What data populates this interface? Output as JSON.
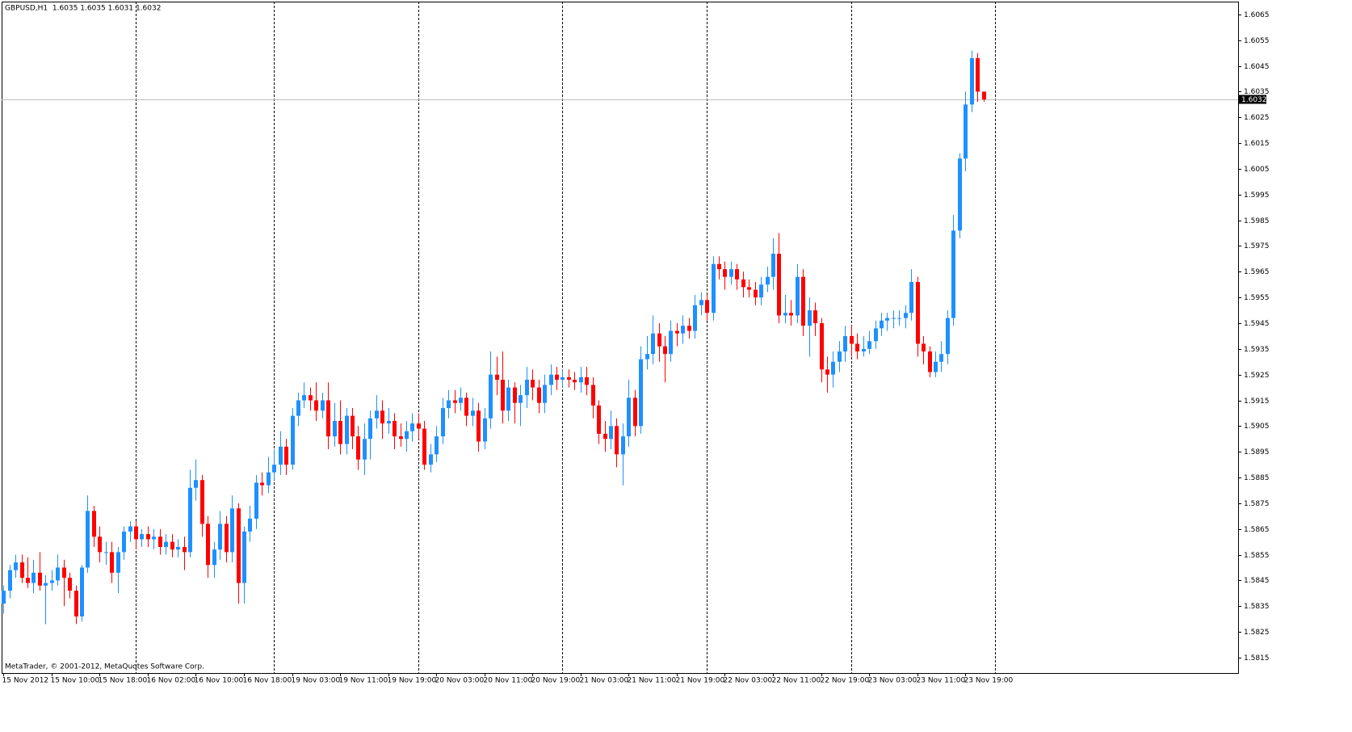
{
  "chart_data": {
    "type": "candlestick",
    "title": "GBPUSD,H1  1.6035 1.6035 1.6031 1.6032",
    "footer": "MetaTrader, © 2001-2012, MetaQuotes Software Corp.",
    "up_color": "#1e90ff",
    "down_color": "#ff0000",
    "last_price": 1.6032,
    "ylim": [
      1.5809,
      1.607
    ],
    "yticks": [
      1.6065,
      1.6055,
      1.6045,
      1.6035,
      1.6025,
      1.6015,
      1.6005,
      1.5995,
      1.5985,
      1.5975,
      1.5965,
      1.5955,
      1.5945,
      1.5935,
      1.5925,
      1.5915,
      1.5905,
      1.5895,
      1.5885,
      1.5875,
      1.5865,
      1.5855,
      1.5845,
      1.5835,
      1.5825,
      1.5815
    ],
    "xticks": [
      "15 Nov 2012",
      "15 Nov 10:00",
      "15 Nov 18:00",
      "16 Nov 02:00",
      "16 Nov 10:00",
      "16 Nov 18:00",
      "19 Nov 03:00",
      "19 Nov 11:00",
      "19 Nov 19:00",
      "20 Nov 03:00",
      "20 Nov 11:00",
      "20 Nov 19:00",
      "21 Nov 03:00",
      "21 Nov 11:00",
      "21 Nov 19:00",
      "22 Nov 03:00",
      "22 Nov 11:00",
      "22 Nov 19:00",
      "23 Nov 03:00",
      "23 Nov 11:00",
      "23 Nov 19:00"
    ],
    "candles": [
      [
        1.5836,
        1.5843,
        1.5832,
        1.5841
      ],
      [
        1.5841,
        1.5851,
        1.5838,
        1.5849
      ],
      [
        1.5849,
        1.5855,
        1.5846,
        1.5852
      ],
      [
        1.5852,
        1.5855,
        1.5844,
        1.5846
      ],
      [
        1.5846,
        1.5854,
        1.5842,
        1.5844
      ],
      [
        1.5844,
        1.5853,
        1.584,
        1.5848
      ],
      [
        1.5848,
        1.5856,
        1.5841,
        1.5843
      ],
      [
        1.5843,
        1.5847,
        1.5828,
        1.5844
      ],
      [
        1.5844,
        1.5849,
        1.5841,
        1.5845
      ],
      [
        1.5845,
        1.5855,
        1.5843,
        1.585
      ],
      [
        1.585,
        1.5853,
        1.5835,
        1.5846
      ],
      [
        1.5846,
        1.5848,
        1.5838,
        1.5841
      ],
      [
        1.5841,
        1.5843,
        1.5828,
        1.5831
      ],
      [
        1.5831,
        1.5851,
        1.5829,
        1.585
      ],
      [
        1.585,
        1.5878,
        1.5848,
        1.5872
      ],
      [
        1.5872,
        1.5874,
        1.5858,
        1.5862
      ],
      [
        1.5862,
        1.5866,
        1.5852,
        1.5856
      ],
      [
        1.5856,
        1.586,
        1.5851,
        1.5856
      ],
      [
        1.5856,
        1.586,
        1.5844,
        1.5848
      ],
      [
        1.5848,
        1.5858,
        1.584,
        1.5856
      ],
      [
        1.5856,
        1.5866,
        1.5853,
        1.5864
      ],
      [
        1.5864,
        1.5868,
        1.586,
        1.5866
      ],
      [
        1.5866,
        1.5868,
        1.5857,
        1.5861
      ],
      [
        1.5861,
        1.5865,
        1.5858,
        1.5863
      ],
      [
        1.5863,
        1.5866,
        1.5858,
        1.5861
      ],
      [
        1.5861,
        1.5865,
        1.5857,
        1.5862
      ],
      [
        1.5862,
        1.5865,
        1.5855,
        1.5858
      ],
      [
        1.5858,
        1.5863,
        1.5855,
        1.586
      ],
      [
        1.586,
        1.5863,
        1.5854,
        1.5857
      ],
      [
        1.5857,
        1.5861,
        1.5854,
        1.5858
      ],
      [
        1.5858,
        1.5862,
        1.5849,
        1.5856
      ],
      [
        1.5856,
        1.5888,
        1.5854,
        1.5881
      ],
      [
        1.5881,
        1.5892,
        1.5876,
        1.5884
      ],
      [
        1.5884,
        1.5886,
        1.5862,
        1.5867
      ],
      [
        1.5867,
        1.587,
        1.5846,
        1.5851
      ],
      [
        1.5851,
        1.586,
        1.5846,
        1.5857
      ],
      [
        1.5857,
        1.5872,
        1.5853,
        1.5867
      ],
      [
        1.5867,
        1.587,
        1.5852,
        1.5856
      ],
      [
        1.5856,
        1.5878,
        1.5852,
        1.5873
      ],
      [
        1.5873,
        1.5875,
        1.5836,
        1.5844
      ],
      [
        1.5844,
        1.5866,
        1.5836,
        1.5864
      ],
      [
        1.5864,
        1.5874,
        1.586,
        1.5869
      ],
      [
        1.5869,
        1.5886,
        1.5865,
        1.5883
      ],
      [
        1.5883,
        1.5887,
        1.5878,
        1.5882
      ],
      [
        1.5882,
        1.5893,
        1.5879,
        1.5887
      ],
      [
        1.5887,
        1.5896,
        1.5884,
        1.589
      ],
      [
        1.589,
        1.5903,
        1.5886,
        1.5897
      ],
      [
        1.5897,
        1.59,
        1.5886,
        1.589
      ],
      [
        1.589,
        1.5912,
        1.5888,
        1.5909
      ],
      [
        1.5909,
        1.5918,
        1.5905,
        1.5915
      ],
      [
        1.5915,
        1.5922,
        1.5912,
        1.5917
      ],
      [
        1.5917,
        1.592,
        1.5911,
        1.5915
      ],
      [
        1.5915,
        1.5922,
        1.5907,
        1.5911
      ],
      [
        1.5911,
        1.5918,
        1.5908,
        1.5915
      ],
      [
        1.5915,
        1.5922,
        1.5896,
        1.5901
      ],
      [
        1.5901,
        1.5914,
        1.5897,
        1.5907
      ],
      [
        1.5907,
        1.5915,
        1.5894,
        1.5898
      ],
      [
        1.5898,
        1.5912,
        1.5894,
        1.5909
      ],
      [
        1.5909,
        1.5912,
        1.5896,
        1.5901
      ],
      [
        1.5901,
        1.5905,
        1.5888,
        1.5892
      ],
      [
        1.5892,
        1.5906,
        1.5886,
        1.59
      ],
      [
        1.59,
        1.5911,
        1.5892,
        1.5908
      ],
      [
        1.5908,
        1.5917,
        1.5904,
        1.5911
      ],
      [
        1.5911,
        1.5915,
        1.59,
        1.5906
      ],
      [
        1.5906,
        1.5912,
        1.5902,
        1.5907
      ],
      [
        1.5907,
        1.591,
        1.5896,
        1.5901
      ],
      [
        1.5901,
        1.5906,
        1.5897,
        1.59
      ],
      [
        1.59,
        1.5907,
        1.5895,
        1.5903
      ],
      [
        1.5903,
        1.591,
        1.5899,
        1.5906
      ],
      [
        1.5906,
        1.591,
        1.59,
        1.5904
      ],
      [
        1.5904,
        1.5907,
        1.5888,
        1.589
      ],
      [
        1.589,
        1.5898,
        1.5887,
        1.5894
      ],
      [
        1.5894,
        1.5905,
        1.5891,
        1.5901
      ],
      [
        1.5901,
        1.5916,
        1.5898,
        1.5912
      ],
      [
        1.5912,
        1.5919,
        1.5908,
        1.5915
      ],
      [
        1.5915,
        1.5919,
        1.591,
        1.5914
      ],
      [
        1.5914,
        1.592,
        1.5911,
        1.5916
      ],
      [
        1.5916,
        1.5918,
        1.5905,
        1.5909
      ],
      [
        1.5909,
        1.5916,
        1.5905,
        1.5911
      ],
      [
        1.5911,
        1.5914,
        1.5895,
        1.5899
      ],
      [
        1.5899,
        1.5912,
        1.5896,
        1.5908
      ],
      [
        1.5908,
        1.5934,
        1.5904,
        1.5925
      ],
      [
        1.5925,
        1.5932,
        1.5917,
        1.5923
      ],
      [
        1.5923,
        1.5934,
        1.5906,
        1.5911
      ],
      [
        1.5911,
        1.5923,
        1.5907,
        1.592
      ],
      [
        1.592,
        1.5922,
        1.5906,
        1.5914
      ],
      [
        1.5914,
        1.5921,
        1.5905,
        1.5917
      ],
      [
        1.5917,
        1.5928,
        1.5912,
        1.5923
      ],
      [
        1.5923,
        1.5927,
        1.5915,
        1.592
      ],
      [
        1.592,
        1.5923,
        1.591,
        1.5914
      ],
      [
        1.5914,
        1.5925,
        1.591,
        1.5921
      ],
      [
        1.5921,
        1.5929,
        1.5917,
        1.5925
      ],
      [
        1.5925,
        1.5928,
        1.5919,
        1.5923
      ],
      [
        1.5923,
        1.5927,
        1.592,
        1.5924
      ],
      [
        1.5924,
        1.5927,
        1.592,
        1.5923
      ],
      [
        1.5923,
        1.5926,
        1.5919,
        1.5922
      ],
      [
        1.5922,
        1.5928,
        1.5918,
        1.5924
      ],
      [
        1.5924,
        1.5928,
        1.5917,
        1.5921
      ],
      [
        1.5921,
        1.5924,
        1.5908,
        1.5913
      ],
      [
        1.5913,
        1.5915,
        1.5898,
        1.5902
      ],
      [
        1.5902,
        1.5907,
        1.5895,
        1.59
      ],
      [
        1.59,
        1.5911,
        1.5896,
        1.5905
      ],
      [
        1.5905,
        1.5908,
        1.5889,
        1.5894
      ],
      [
        1.5894,
        1.5906,
        1.5882,
        1.5901
      ],
      [
        1.5901,
        1.5923,
        1.5897,
        1.5916
      ],
      [
        1.5916,
        1.5919,
        1.5901,
        1.5905
      ],
      [
        1.5905,
        1.5936,
        1.5902,
        1.5931
      ],
      [
        1.5931,
        1.594,
        1.5927,
        1.5933
      ],
      [
        1.5933,
        1.5948,
        1.5929,
        1.5941
      ],
      [
        1.5941,
        1.5945,
        1.593,
        1.5936
      ],
      [
        1.5936,
        1.594,
        1.5922,
        1.5933
      ],
      [
        1.5933,
        1.5946,
        1.593,
        1.5942
      ],
      [
        1.5942,
        1.5945,
        1.5936,
        1.5941
      ],
      [
        1.5941,
        1.5948,
        1.5937,
        1.5944
      ],
      [
        1.5944,
        1.5947,
        1.5939,
        1.5942
      ],
      [
        1.5942,
        1.5956,
        1.5939,
        1.5952
      ],
      [
        1.5952,
        1.5957,
        1.5948,
        1.5954
      ],
      [
        1.5954,
        1.5956,
        1.5946,
        1.5949
      ],
      [
        1.5949,
        1.5971,
        1.5946,
        1.5968
      ],
      [
        1.5968,
        1.5971,
        1.5962,
        1.5966
      ],
      [
        1.5966,
        1.5969,
        1.5958,
        1.5963
      ],
      [
        1.5963,
        1.5969,
        1.596,
        1.5966
      ],
      [
        1.5966,
        1.5968,
        1.5958,
        1.5962
      ],
      [
        1.5962,
        1.5965,
        1.5955,
        1.5959
      ],
      [
        1.5959,
        1.5962,
        1.5955,
        1.5958
      ],
      [
        1.5958,
        1.5961,
        1.5952,
        1.5955
      ],
      [
        1.5955,
        1.5963,
        1.5952,
        1.596
      ],
      [
        1.596,
        1.5967,
        1.5957,
        1.5963
      ],
      [
        1.5963,
        1.5978,
        1.5958,
        1.5972
      ],
      [
        1.5972,
        1.598,
        1.5945,
        1.5948
      ],
      [
        1.5948,
        1.5956,
        1.5945,
        1.5949
      ],
      [
        1.5949,
        1.5954,
        1.5944,
        1.5948
      ],
      [
        1.5948,
        1.5968,
        1.5945,
        1.5963
      ],
      [
        1.5963,
        1.5966,
        1.594,
        1.5944
      ],
      [
        1.5944,
        1.5955,
        1.5932,
        1.595
      ],
      [
        1.595,
        1.5953,
        1.594,
        1.5945
      ],
      [
        1.5945,
        1.5947,
        1.5922,
        1.5927
      ],
      [
        1.5927,
        1.5932,
        1.5918,
        1.5925
      ],
      [
        1.5925,
        1.5934,
        1.592,
        1.593
      ],
      [
        1.593,
        1.5938,
        1.5926,
        1.5934
      ],
      [
        1.5934,
        1.5944,
        1.593,
        1.594
      ],
      [
        1.594,
        1.5944,
        1.5932,
        1.5937
      ],
      [
        1.5937,
        1.5941,
        1.5931,
        1.5934
      ],
      [
        1.5934,
        1.594,
        1.5932,
        1.5935
      ],
      [
        1.5935,
        1.5942,
        1.5933,
        1.5938
      ],
      [
        1.5938,
        1.5946,
        1.5935,
        1.5943
      ],
      [
        1.5943,
        1.5949,
        1.594,
        1.5946
      ],
      [
        1.5946,
        1.5949,
        1.5942,
        1.5947
      ],
      [
        1.5947,
        1.595,
        1.5943,
        1.5947
      ],
      [
        1.5947,
        1.595,
        1.5944,
        1.5947
      ],
      [
        1.5947,
        1.5952,
        1.5943,
        1.5949
      ],
      [
        1.5949,
        1.5966,
        1.5946,
        1.5961
      ],
      [
        1.5961,
        1.5963,
        1.5932,
        1.5937
      ],
      [
        1.5937,
        1.594,
        1.5929,
        1.5934
      ],
      [
        1.5934,
        1.5936,
        1.5924,
        1.5926
      ],
      [
        1.5926,
        1.5934,
        1.5924,
        1.593
      ],
      [
        1.593,
        1.5938,
        1.5926,
        1.5933
      ],
      [
        1.5933,
        1.595,
        1.5929,
        1.5947
      ],
      [
        1.5947,
        1.5987,
        1.5944,
        1.5981
      ],
      [
        1.5981,
        1.6011,
        1.5978,
        1.6009
      ],
      [
        1.6009,
        1.6035,
        1.6004,
        1.603
      ],
      [
        1.603,
        1.6051,
        1.6027,
        1.6048
      ],
      [
        1.6048,
        1.605,
        1.6031,
        1.6035
      ],
      [
        1.6035,
        1.6035,
        1.6031,
        1.6032
      ]
    ]
  }
}
